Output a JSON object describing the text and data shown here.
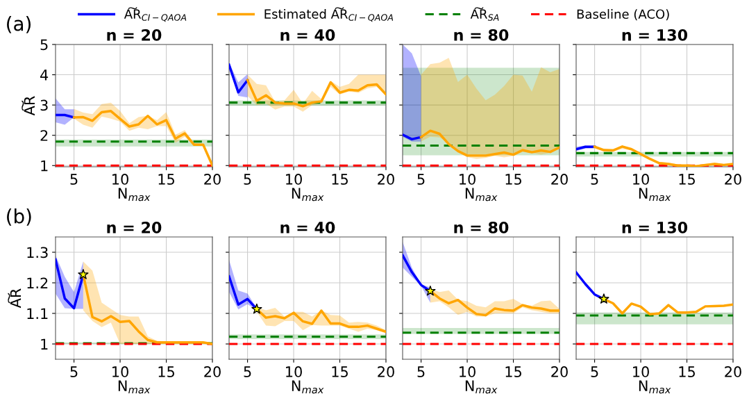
{
  "chart_data": [
    {
      "type": "line",
      "title": "n = 20",
      "xlabel": "N$_{max}$",
      "ylabel": "A͠R",
      "xlim": [
        3,
        20
      ],
      "xticks": [
        5,
        10,
        15,
        20
      ],
      "ylim": [
        0.96,
        5
      ],
      "yticks": [
        1,
        2,
        3,
        4,
        5
      ],
      "grid": true,
      "legend": "top",
      "line_style": "solid",
      "annotations": [
        "(a)"
      ],
      "series": [
        {
          "name": "A͠R$_{CI−QAOA}$",
          "color": "#0000ff",
          "x": [
            3,
            4,
            5
          ],
          "values": [
            2.67,
            2.67,
            2.59
          ],
          "lower": [
            2.43,
            2.35,
            2.59
          ],
          "upper": [
            3.22,
            2.86,
            2.86
          ]
        },
        {
          "name": "Estimated A͠R$_{CI−QAOA}$",
          "color": "#ffa500",
          "x": [
            5,
            6,
            7,
            8,
            9,
            10,
            11,
            12,
            13,
            14,
            15,
            16,
            17,
            18,
            19,
            20
          ],
          "values": [
            2.59,
            2.6,
            2.48,
            2.76,
            2.8,
            2.54,
            2.29,
            2.36,
            2.64,
            2.36,
            2.5,
            1.89,
            2.06,
            1.69,
            1.69,
            1.0
          ],
          "lower": [
            2.55,
            2.35,
            2.25,
            2.62,
            2.55,
            2.45,
            2.15,
            2.25,
            2.2,
            2.3,
            2.3,
            1.75,
            1.95,
            1.65,
            1.65,
            1.0
          ],
          "upper": [
            2.87,
            2.75,
            2.7,
            3.03,
            3.08,
            2.8,
            2.4,
            2.6,
            2.65,
            2.5,
            2.77,
            2.02,
            2.17,
            1.75,
            1.72,
            1.02
          ]
        }
      ],
      "ref_lines": [
        {
          "axis": "y",
          "value": 1.79,
          "label": "A͠R$_{SA}$",
          "color": "#008000",
          "line_style": "dashed"
        },
        {
          "axis": "y",
          "value": 1,
          "label": "Baseline (ACO)",
          "color": "#ff0000",
          "line_style": "dashed"
        }
      ],
      "bands": [
        {
          "axis": "y",
          "from": 1.63,
          "to": 1.86,
          "color": "#008000"
        }
      ]
    },
    {
      "type": "line",
      "title": "n = 40",
      "xlabel": "N$_{max}$",
      "xlim": [
        3,
        20
      ],
      "xticks": [
        5,
        10,
        15,
        20
      ],
      "ylim": [
        0.96,
        5
      ],
      "yticks": [
        1,
        2,
        3,
        4,
        5
      ],
      "tick_labels": "x",
      "grid": true,
      "line_style": "solid",
      "series": [
        {
          "color": "#0000ff",
          "x": [
            3,
            4,
            5
          ],
          "values": [
            4.33,
            3.42,
            3.82
          ],
          "lower": [
            4.2,
            3.3,
            3.25
          ],
          "upper": [
            4.4,
            3.75,
            4.02
          ]
        },
        {
          "color": "#ffa500",
          "x": [
            5,
            6,
            7,
            8,
            9,
            10,
            11,
            12,
            13,
            14,
            15,
            16,
            17,
            18,
            19,
            20
          ],
          "values": [
            3.82,
            3.14,
            3.32,
            3.08,
            3.05,
            3.05,
            2.96,
            3.08,
            3.12,
            3.75,
            3.41,
            3.5,
            3.48,
            3.65,
            3.68,
            3.35
          ],
          "lower": [
            3.3,
            3.0,
            3.05,
            2.85,
            2.95,
            2.95,
            2.78,
            3.0,
            3.05,
            3.6,
            3.35,
            3.45,
            3.4,
            3.55,
            3.6,
            3.3
          ],
          "upper": [
            4.0,
            3.7,
            3.65,
            3.1,
            3.15,
            3.5,
            3.05,
            3.47,
            3.2,
            3.8,
            3.6,
            3.7,
            4.0,
            4.0,
            4.0,
            4.0
          ]
        }
      ],
      "ref_lines": [
        {
          "axis": "y",
          "value": 3.08,
          "color": "#008000",
          "line_style": "dashed"
        },
        {
          "axis": "y",
          "value": 1,
          "color": "#ff0000",
          "line_style": "dashed"
        }
      ],
      "bands": [
        {
          "axis": "y",
          "from": 2.98,
          "to": 3.15,
          "color": "#008000"
        }
      ]
    },
    {
      "type": "line",
      "title": "n = 80",
      "xlabel": "N$_{max}$",
      "xlim": [
        3,
        20
      ],
      "xticks": [
        5,
        10,
        15,
        20
      ],
      "ylim": [
        0.96,
        5
      ],
      "yticks": [
        1,
        2,
        3,
        4,
        5
      ],
      "tick_labels": "x",
      "grid": true,
      "line_style": "solid",
      "series": [
        {
          "color": "#0000ff",
          "x": [
            3,
            4,
            5
          ],
          "values": [
            2.02,
            1.87,
            1.94
          ],
          "lower": [
            1.95,
            1.79,
            1.79
          ],
          "upper": [
            5.0,
            4.71,
            3.95
          ]
        },
        {
          "color": "#ffa500",
          "x": [
            5,
            6,
            7,
            8,
            9,
            10,
            11,
            12,
            13,
            14,
            15,
            16,
            17,
            18,
            19,
            20
          ],
          "values": [
            1.94,
            2.15,
            2.05,
            1.71,
            1.48,
            1.33,
            1.33,
            1.33,
            1.38,
            1.43,
            1.36,
            1.51,
            1.44,
            1.5,
            1.45,
            1.6
          ],
          "lower": [
            1.8,
            1.95,
            1.93,
            1.75,
            1.5,
            1.28,
            1.22,
            1.25,
            1.32,
            1.27,
            1.32,
            1.45,
            1.42,
            1.36,
            1.42,
            1.55
          ],
          "upper": [
            4.0,
            4.35,
            4.4,
            4.56,
            3.76,
            4.0,
            3.54,
            3.16,
            3.34,
            3.63,
            4.0,
            3.97,
            3.44,
            4.25,
            4.08,
            4.19
          ]
        }
      ],
      "ref_lines": [
        {
          "axis": "y",
          "value": 1.66,
          "color": "#008000",
          "line_style": "dashed"
        },
        {
          "axis": "y",
          "value": 1,
          "color": "#ff0000",
          "line_style": "dashed"
        }
      ],
      "bands": [
        {
          "axis": "y",
          "from": 1.34,
          "to": 4.23,
          "color": "#008000"
        }
      ]
    },
    {
      "type": "line",
      "title": "n = 130",
      "xlabel": "N$_{max}$",
      "xlim": [
        3,
        20
      ],
      "xticks": [
        5,
        10,
        15,
        20
      ],
      "ylim": [
        0.96,
        5
      ],
      "yticks": [
        1,
        2,
        3,
        4,
        5
      ],
      "tick_labels": "x",
      "grid": true,
      "line_style": "solid",
      "series": [
        {
          "color": "#0000ff",
          "x": [
            3,
            4,
            5
          ],
          "values": [
            1.54,
            1.62,
            1.62
          ],
          "lower": [
            1.48,
            1.56,
            1.57
          ],
          "upper": [
            1.62,
            1.66,
            1.66
          ]
        },
        {
          "color": "#ffa500",
          "x": [
            5,
            6,
            7,
            8,
            9,
            10,
            11,
            12,
            13,
            14,
            15,
            16,
            17,
            18,
            19,
            20
          ],
          "values": [
            1.62,
            1.51,
            1.5,
            1.63,
            1.54,
            1.38,
            1.22,
            1.08,
            1.05,
            1.0,
            1.0,
            0.98,
            1.02,
            1.05,
            1.02,
            1.05
          ],
          "lower": [
            1.57,
            1.47,
            1.46,
            1.55,
            1.5,
            1.34,
            1.18,
            1.03,
            1.0,
            0.98,
            0.98,
            0.97,
            0.99,
            1.0,
            0.99,
            1.0
          ],
          "upper": [
            1.66,
            1.56,
            1.55,
            1.65,
            1.58,
            1.42,
            1.26,
            1.12,
            1.1,
            1.04,
            1.03,
            1.0,
            1.05,
            1.1,
            1.05,
            1.08
          ]
        }
      ],
      "ref_lines": [
        {
          "axis": "y",
          "value": 1.41,
          "color": "#008000",
          "line_style": "dashed"
        },
        {
          "axis": "y",
          "value": 1,
          "color": "#ff0000",
          "line_style": "dashed"
        }
      ],
      "bands": [
        {
          "axis": "y",
          "from": 1.3,
          "to": 1.45,
          "color": "#008000"
        }
      ]
    },
    {
      "type": "line",
      "title": "n = 20",
      "xlabel": "N$_{max}$",
      "ylabel": "A͠R",
      "xlim": [
        3,
        20
      ],
      "xticks": [
        5,
        10,
        15,
        20
      ],
      "ylim": [
        0.95,
        1.35
      ],
      "yticks": [
        1,
        1.1,
        1.2,
        1.3
      ],
      "grid": true,
      "line_style": "solid",
      "annotations": [
        "(b)"
      ],
      "series": [
        {
          "color": "#0000ff",
          "x": [
            3,
            4,
            5,
            6
          ],
          "values": [
            1.276,
            1.149,
            1.117,
            1.227
          ],
          "lower": [
            1.165,
            1.117,
            1.115,
            1.115
          ],
          "upper": [
            1.29,
            1.22,
            1.17,
            1.27
          ]
        },
        {
          "color": "#ffa500",
          "x": [
            6,
            7,
            8,
            9,
            10,
            11,
            12,
            13,
            14,
            15,
            16,
            17,
            18,
            19,
            20
          ],
          "values": [
            1.227,
            1.088,
            1.074,
            1.091,
            1.072,
            1.075,
            1.041,
            1.013,
            1.005,
            1.005,
            1.005,
            1.005,
            1.005,
            1.005,
            1.0
          ],
          "lower": [
            1.11,
            1.075,
            1.055,
            1.07,
            1.0,
            1.0,
            1.0,
            1.0,
            1.0,
            1.0,
            1.0,
            1.0,
            1.0,
            1.0,
            1.0
          ],
          "upper": [
            1.27,
            1.24,
            1.135,
            1.115,
            1.095,
            1.09,
            1.09,
            1.025,
            1.01,
            1.008,
            1.008,
            1.008,
            1.008,
            1.008,
            1.003
          ]
        },
        {
          "type": "scatter",
          "marker": "star",
          "color": "#ffff00",
          "x": [
            6
          ],
          "values": [
            1.227
          ]
        }
      ],
      "ref_lines": [
        {
          "axis": "y",
          "value": 1.002,
          "color": "#008000",
          "line_style": "dashed"
        },
        {
          "axis": "y",
          "value": 1,
          "color": "#ff0000",
          "line_style": "dashed"
        }
      ],
      "bands": [
        {
          "axis": "y",
          "from": 1.0,
          "to": 1.005,
          "color": "#008000"
        }
      ]
    },
    {
      "type": "line",
      "title": "n = 40",
      "xlabel": "N$_{max}$",
      "xlim": [
        3,
        20
      ],
      "xticks": [
        5,
        10,
        15,
        20
      ],
      "ylim": [
        0.95,
        1.35
      ],
      "yticks": [
        1,
        1.1,
        1.2,
        1.3
      ],
      "tick_labels": "x",
      "grid": true,
      "line_style": "solid",
      "series": [
        {
          "color": "#0000ff",
          "x": [
            3,
            4,
            5,
            6
          ],
          "values": [
            1.221,
            1.129,
            1.147,
            1.114
          ],
          "lower": [
            1.17,
            1.113,
            1.13,
            1.11
          ],
          "upper": [
            1.275,
            1.175,
            1.165,
            1.117
          ]
        },
        {
          "color": "#ffa500",
          "x": [
            6,
            7,
            8,
            9,
            10,
            11,
            12,
            13,
            14,
            15,
            16,
            17,
            18,
            19,
            20
          ],
          "values": [
            1.114,
            1.086,
            1.091,
            1.084,
            1.102,
            1.074,
            1.066,
            1.109,
            1.067,
            1.067,
            1.056,
            1.056,
            1.06,
            1.05,
            1.04
          ],
          "lower": [
            1.105,
            1.06,
            1.058,
            1.075,
            1.075,
            1.045,
            1.062,
            1.06,
            1.06,
            1.06,
            1.05,
            1.04,
            1.05,
            1.045,
            1.035
          ],
          "upper": [
            1.12,
            1.11,
            1.118,
            1.09,
            1.105,
            1.105,
            1.09,
            1.11,
            1.095,
            1.093,
            1.07,
            1.072,
            1.07,
            1.06,
            1.045
          ]
        },
        {
          "type": "scatter",
          "marker": "star",
          "color": "#ffff00",
          "x": [
            6
          ],
          "values": [
            1.114
          ]
        }
      ],
      "ref_lines": [
        {
          "axis": "y",
          "value": 1.024,
          "color": "#008000",
          "line_style": "dashed"
        },
        {
          "axis": "y",
          "value": 1,
          "color": "#ff0000",
          "line_style": "dashed"
        }
      ],
      "bands": [
        {
          "axis": "y",
          "from": 1.016,
          "to": 1.031,
          "color": "#008000"
        }
      ]
    },
    {
      "type": "line",
      "title": "n = 80",
      "xlabel": "N$_{max}$",
      "xlim": [
        3,
        20
      ],
      "xticks": [
        5,
        10,
        15,
        20
      ],
      "ylim": [
        0.95,
        1.35
      ],
      "yticks": [
        1,
        1.1,
        1.2,
        1.3
      ],
      "tick_labels": "x",
      "grid": true,
      "line_style": "solid",
      "series": [
        {
          "color": "#0000ff",
          "x": [
            3,
            4,
            5,
            6
          ],
          "values": [
            1.29,
            1.235,
            1.193,
            1.173
          ],
          "lower": [
            1.25,
            1.22,
            1.19,
            1.135
          ],
          "upper": [
            1.334,
            1.25,
            1.195,
            1.185
          ]
        },
        {
          "color": "#ffa500",
          "x": [
            6,
            7,
            8,
            9,
            10,
            11,
            12,
            13,
            14,
            15,
            16,
            17,
            18,
            19,
            20
          ],
          "values": [
            1.173,
            1.149,
            1.133,
            1.144,
            1.119,
            1.098,
            1.094,
            1.116,
            1.111,
            1.109,
            1.127,
            1.119,
            1.116,
            1.109,
            1.109
          ],
          "lower": [
            1.135,
            1.14,
            1.12,
            1.095,
            1.105,
            1.09,
            1.09,
            1.1,
            1.1,
            1.1,
            1.12,
            1.11,
            1.105,
            1.1,
            1.1
          ],
          "upper": [
            1.18,
            1.17,
            1.175,
            1.145,
            1.14,
            1.125,
            1.12,
            1.14,
            1.14,
            1.148,
            1.13,
            1.125,
            1.14,
            1.142,
            1.115
          ]
        },
        {
          "type": "scatter",
          "marker": "star",
          "color": "#ffff00",
          "x": [
            6
          ],
          "values": [
            1.173
          ]
        }
      ],
      "ref_lines": [
        {
          "axis": "y",
          "value": 1.037,
          "color": "#008000",
          "line_style": "dashed"
        },
        {
          "axis": "y",
          "value": 1,
          "color": "#ff0000",
          "line_style": "dashed"
        }
      ],
      "bands": [
        {
          "axis": "y",
          "from": 1.033,
          "to": 1.052,
          "color": "#008000"
        }
      ]
    },
    {
      "type": "line",
      "title": "n = 130",
      "xlabel": "N$_{max}$",
      "xlim": [
        3,
        20
      ],
      "xticks": [
        5,
        10,
        15,
        20
      ],
      "ylim": [
        0.95,
        1.35
      ],
      "yticks": [
        1,
        1.1,
        1.2,
        1.3
      ],
      "tick_labels": "x",
      "grid": true,
      "line_style": "solid",
      "series": [
        {
          "color": "#0000ff",
          "x": [
            3,
            4,
            5,
            6
          ],
          "values": [
            1.234,
            1.196,
            1.162,
            1.147
          ]
        },
        {
          "color": "#ffa500",
          "x": [
            6,
            7,
            8,
            9,
            10,
            11,
            12,
            13,
            14,
            15,
            16,
            17,
            18,
            19,
            20
          ],
          "values": [
            1.147,
            1.133,
            1.1,
            1.132,
            1.122,
            1.097,
            1.1,
            1.127,
            1.103,
            1.103,
            1.105,
            1.123,
            1.124,
            1.125,
            1.129
          ]
        },
        {
          "type": "scatter",
          "marker": "star",
          "color": "#ffff00",
          "x": [
            6
          ],
          "values": [
            1.147
          ]
        }
      ],
      "ref_lines": [
        {
          "axis": "y",
          "value": 1.093,
          "color": "#008000",
          "line_style": "dashed"
        },
        {
          "axis": "y",
          "value": 1,
          "color": "#ff0000",
          "line_style": "dashed"
        }
      ],
      "bands": [
        {
          "axis": "y",
          "from": 1.064,
          "to": 1.103,
          "color": "#008000"
        }
      ]
    }
  ]
}
